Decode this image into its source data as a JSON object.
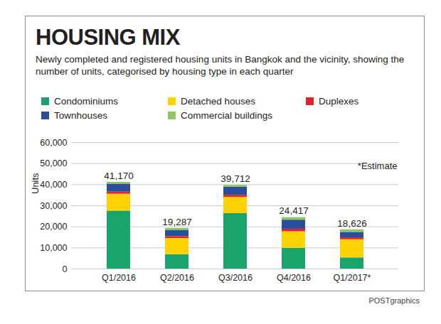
{
  "chart_data": {
    "type": "bar",
    "stacked": true,
    "title": "HOUSING MIX",
    "subtitle": "Newly completed and registered housing units in Bangkok and the vicinity, showing the number of units, categorised by housing type in each quarter",
    "y_label": "Units",
    "note": "*Estimate",
    "source": "POSTgraphics",
    "categories": [
      "Q1/2016",
      "Q2/2016",
      "Q3/2016",
      "Q4/2016",
      "Q1/2017*"
    ],
    "series": [
      {
        "name": "Condominiums",
        "color": "#1ba36c",
        "values": [
          27500,
          6800,
          26300,
          9800,
          5300
        ]
      },
      {
        "name": "Detached houses",
        "color": "#ffd204",
        "values": [
          8000,
          7700,
          7700,
          7900,
          8600
        ]
      },
      {
        "name": "Duplexes",
        "color": "#e4222b",
        "values": [
          1000,
          900,
          1000,
          1200,
          900
        ]
      },
      {
        "name": "Townhouses",
        "color": "#2b4d9e",
        "values": [
          3800,
          3000,
          3800,
          4300,
          2600
        ]
      },
      {
        "name": "Commercial buildings",
        "color": "#8dc865",
        "values": [
          870,
          887,
          912,
          1217,
          1226
        ]
      }
    ],
    "totals": [
      41170,
      19287,
      39712,
      24417,
      18626
    ],
    "total_labels": [
      "41,170",
      "19,287",
      "39,712",
      "24,417",
      "18,626"
    ],
    "ylim": [
      0,
      60000
    ],
    "yticks": [
      0,
      {
        "value": 10000,
        "label": "10,000"
      },
      {
        "value": 20000,
        "label": "20,000"
      },
      {
        "value": 30000,
        "label": "30,000"
      },
      {
        "value": 40000,
        "label": "40,000"
      },
      {
        "value": 50000,
        "label": "50,000"
      },
      {
        "value": 60000,
        "label": "60,000"
      }
    ],
    "grid": true,
    "legend": "top"
  }
}
